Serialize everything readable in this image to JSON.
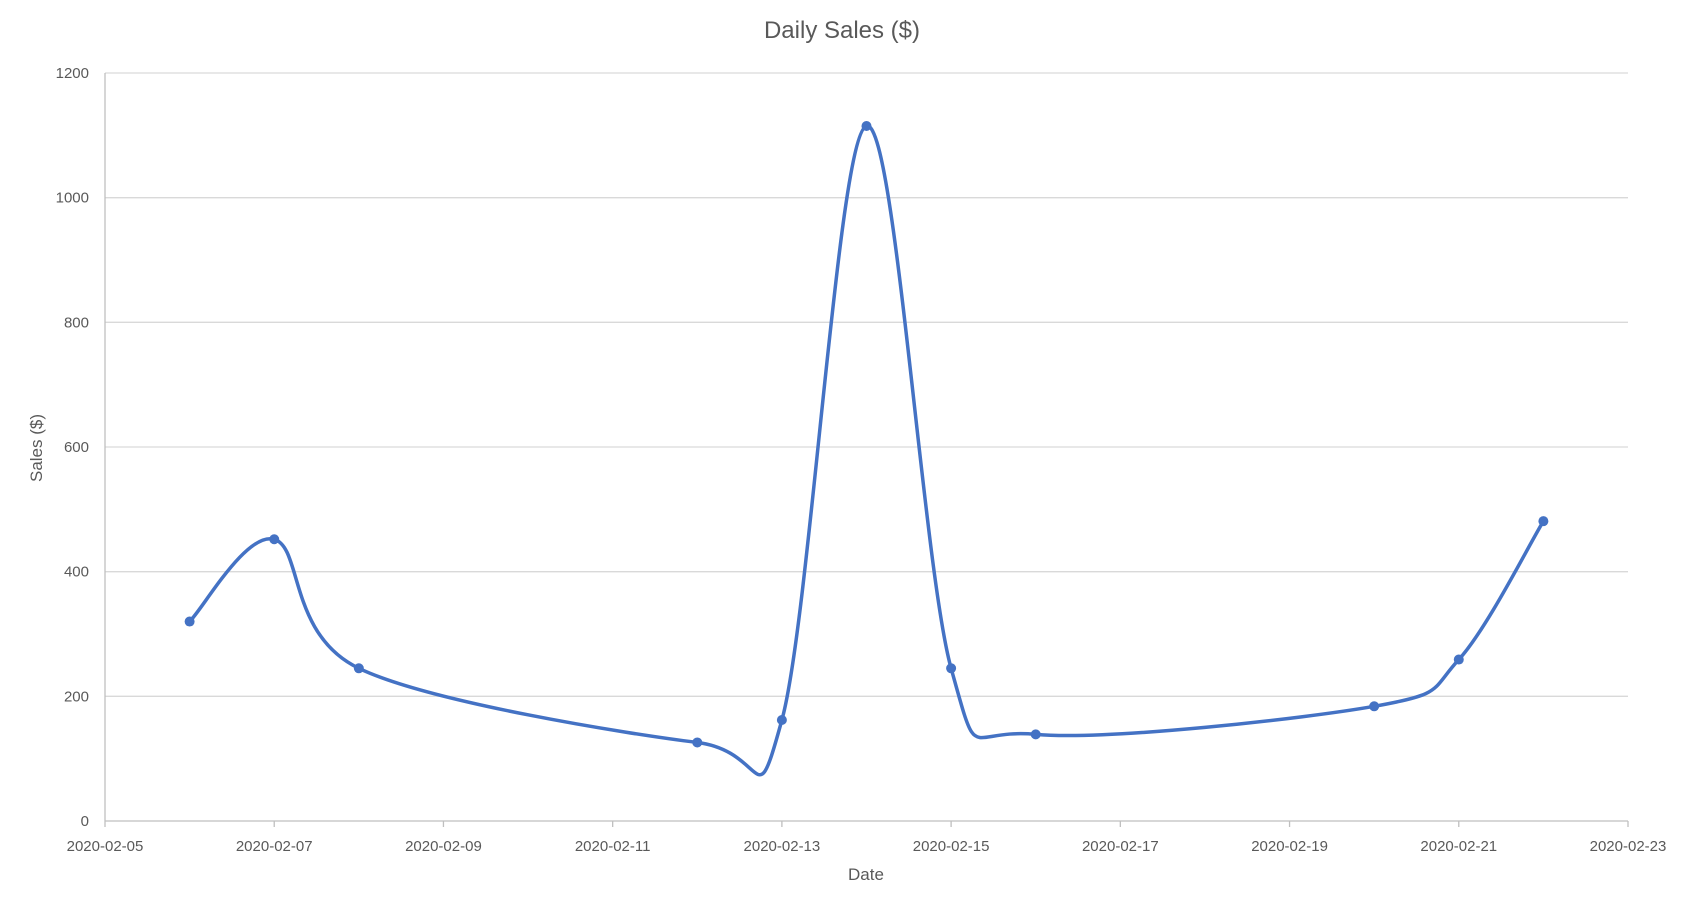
{
  "chart_data": {
    "type": "line",
    "title": "Daily Sales ($)",
    "xlabel": "Date",
    "ylabel": "Sales ($)",
    "x_axis_type": "date",
    "xlim": [
      "2020-02-05",
      "2020-02-23"
    ],
    "x_ticks": [
      "2020-02-05",
      "2020-02-07",
      "2020-02-09",
      "2020-02-11",
      "2020-02-13",
      "2020-02-15",
      "2020-02-17",
      "2020-02-19",
      "2020-02-21",
      "2020-02-23"
    ],
    "ylim": [
      0,
      1200
    ],
    "y_ticks": [
      0,
      200,
      400,
      600,
      800,
      1000,
      1200
    ],
    "grid": "horizontal",
    "smoothed": true,
    "markers": true,
    "series": [
      {
        "color": "#4472c4",
        "points": [
          {
            "x": "2020-02-06",
            "y": 320
          },
          {
            "x": "2020-02-07",
            "y": 452
          },
          {
            "x": "2020-02-08",
            "y": 245
          },
          {
            "x": "2020-02-12",
            "y": 126
          },
          {
            "x": "2020-02-13",
            "y": 162
          },
          {
            "x": "2020-02-14",
            "y": 1115
          },
          {
            "x": "2020-02-15",
            "y": 245
          },
          {
            "x": "2020-02-16",
            "y": 139
          },
          {
            "x": "2020-02-20",
            "y": 184
          },
          {
            "x": "2020-02-21",
            "y": 259
          },
          {
            "x": "2020-02-22",
            "y": 481
          }
        ]
      }
    ]
  }
}
